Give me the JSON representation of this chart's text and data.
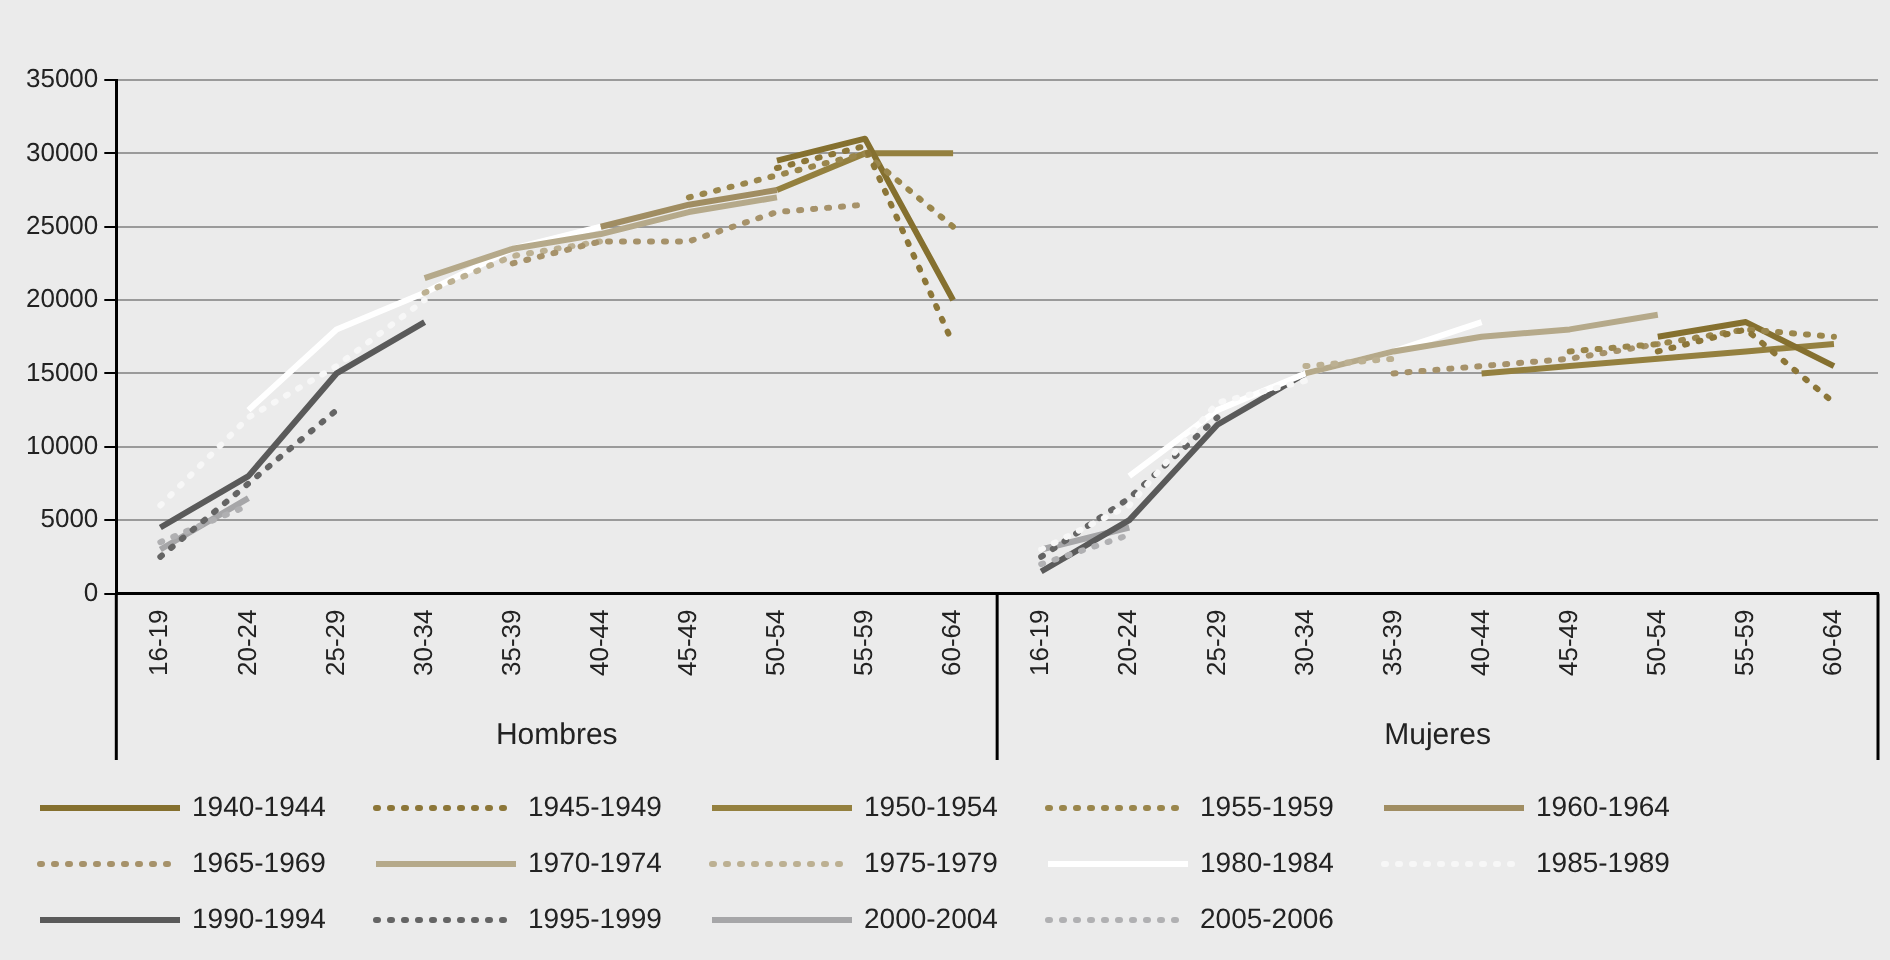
{
  "chart_data": {
    "type": "line",
    "categories": [
      "16-19",
      "20-24",
      "25-29",
      "30-34",
      "35-39",
      "40-44",
      "45-49",
      "50-54",
      "55-59",
      "60-64",
      "16-19",
      "20-24",
      "25-29",
      "30-34",
      "35-39",
      "40-44",
      "45-49",
      "50-54",
      "55-59",
      "60-64"
    ],
    "annotations": [
      "Hombres",
      "Mujeres"
    ],
    "ylim": [
      0,
      35000
    ],
    "yticks": [
      0,
      5000,
      10000,
      15000,
      20000,
      25000,
      30000,
      35000
    ],
    "grid": "y",
    "legend": "bottom",
    "marker": "none",
    "series": [
      {
        "name": "1940-1944",
        "color": "#85702f",
        "line_style": "solid",
        "values": [
          null,
          null,
          null,
          null,
          null,
          null,
          null,
          29500,
          31000,
          20000,
          null,
          null,
          null,
          null,
          null,
          null,
          null,
          17500,
          18500,
          15500
        ]
      },
      {
        "name": "1945-1949",
        "color": "#8c7638",
        "line_style": "dotted",
        "values": [
          null,
          null,
          null,
          null,
          null,
          null,
          null,
          29000,
          30500,
          17000,
          null,
          null,
          null,
          null,
          null,
          null,
          null,
          16500,
          18000,
          13000
        ]
      },
      {
        "name": "1950-1954",
        "color": "#94803f",
        "line_style": "solid",
        "values": [
          null,
          null,
          null,
          null,
          null,
          null,
          null,
          27500,
          30000,
          30000,
          null,
          null,
          null,
          null,
          null,
          15000,
          15500,
          16000,
          16500,
          17000
        ]
      },
      {
        "name": "1955-1959",
        "color": "#9a864c",
        "line_style": "dotted",
        "values": [
          null,
          null,
          null,
          null,
          null,
          null,
          27000,
          28500,
          30000,
          25000,
          null,
          null,
          null,
          null,
          null,
          null,
          16500,
          17000,
          18000,
          17500
        ]
      },
      {
        "name": "1960-1964",
        "color": "#a08d62",
        "line_style": "solid",
        "values": [
          null,
          null,
          null,
          null,
          null,
          25000,
          26500,
          27500,
          null,
          null,
          null,
          null,
          null,
          null,
          null,
          null,
          null,
          null,
          null,
          null
        ]
      },
      {
        "name": "1965-1969",
        "color": "#a6926a",
        "line_style": "dotted",
        "values": [
          null,
          null,
          null,
          null,
          22500,
          24000,
          24000,
          26000,
          26500,
          null,
          null,
          null,
          null,
          null,
          15000,
          15500,
          16000,
          17000,
          null,
          null
        ]
      },
      {
        "name": "1970-1974",
        "color": "#b5a98a",
        "line_style": "solid",
        "values": [
          null,
          null,
          null,
          21500,
          23500,
          24500,
          26000,
          27000,
          null,
          null,
          null,
          null,
          null,
          15000,
          16500,
          17500,
          18000,
          19000,
          null,
          null
        ]
      },
      {
        "name": "1975-1979",
        "color": "#bcb092",
        "line_style": "dotted",
        "values": [
          null,
          null,
          null,
          20500,
          23000,
          24000,
          null,
          null,
          null,
          null,
          null,
          null,
          null,
          15500,
          16000,
          null,
          null,
          null,
          null,
          null
        ]
      },
      {
        "name": "1980-1984",
        "color": "#ffffff",
        "line_style": "solid",
        "values": [
          null,
          12500,
          18000,
          20500,
          23500,
          25000,
          null,
          null,
          null,
          null,
          null,
          8000,
          12500,
          15000,
          16500,
          18500,
          null,
          null,
          null,
          null
        ]
      },
      {
        "name": "1985-1989",
        "color": "#f7f7f7",
        "line_style": "dotted",
        "values": [
          6000,
          12000,
          15500,
          20000,
          null,
          null,
          null,
          null,
          null,
          null,
          3000,
          6000,
          13000,
          14500,
          null,
          null,
          null,
          null,
          null,
          null
        ]
      },
      {
        "name": "1990-1994",
        "color": "#5a5a5a",
        "line_style": "solid",
        "values": [
          4500,
          8000,
          15000,
          18500,
          null,
          null,
          null,
          null,
          null,
          null,
          1500,
          5000,
          11500,
          15000,
          null,
          null,
          null,
          null,
          null,
          null
        ]
      },
      {
        "name": "1995-1999",
        "color": "#646464",
        "line_style": "dotted",
        "values": [
          2500,
          7500,
          12500,
          null,
          null,
          null,
          null,
          null,
          null,
          null,
          2500,
          6500,
          12000,
          null,
          null,
          null,
          null,
          null,
          null,
          null
        ]
      },
      {
        "name": "2000-2004",
        "color": "#a6a6a8",
        "line_style": "solid",
        "values": [
          3000,
          6500,
          null,
          null,
          null,
          null,
          null,
          null,
          null,
          null,
          3000,
          4500,
          null,
          null,
          null,
          null,
          null,
          null,
          null,
          null
        ]
      },
      {
        "name": "2005-2006",
        "color": "#b0b0b2",
        "line_style": "dotted",
        "values": [
          3500,
          6000,
          null,
          null,
          null,
          null,
          null,
          null,
          null,
          null,
          2000,
          4000,
          null,
          null,
          null,
          null,
          null,
          null,
          null,
          null
        ]
      }
    ]
  }
}
